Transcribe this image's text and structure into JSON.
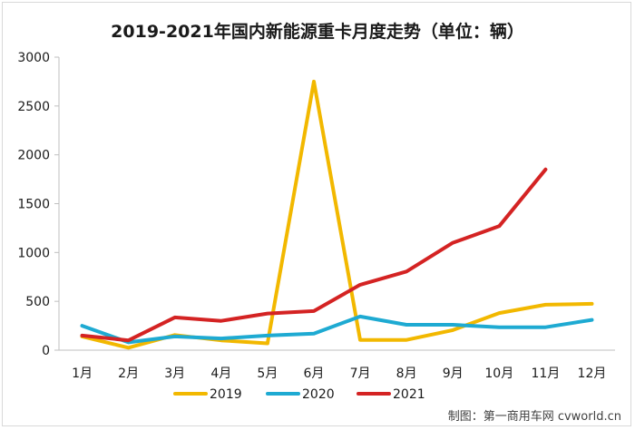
{
  "chart_data": {
    "type": "line",
    "title": "2019-2021年国内新能源重卡月度走势（单位：辆）",
    "xlabel": "",
    "ylabel": "",
    "categories": [
      "1月",
      "2月",
      "3月",
      "4月",
      "5月",
      "6月",
      "7月",
      "8月",
      "9月",
      "10月",
      "11月",
      "12月"
    ],
    "ylim": [
      0,
      3000
    ],
    "yticks": [
      0,
      500,
      1000,
      1500,
      2000,
      2500,
      3000
    ],
    "grid": false,
    "legend_position": "bottom",
    "series": [
      {
        "name": "2019",
        "color": "#f2b800",
        "values": [
          140,
          25,
          155,
          100,
          70,
          2750,
          105,
          105,
          205,
          380,
          465,
          475
        ]
      },
      {
        "name": "2020",
        "color": "#1eaad2",
        "values": [
          250,
          80,
          140,
          120,
          150,
          170,
          345,
          260,
          260,
          235,
          235,
          310
        ]
      },
      {
        "name": "2021",
        "color": "#d42323",
        "values": [
          150,
          100,
          335,
          300,
          375,
          400,
          670,
          805,
          1100,
          1270,
          1850,
          null
        ]
      }
    ]
  },
  "credit": "制图：第一商用车网 cvworld.cn"
}
